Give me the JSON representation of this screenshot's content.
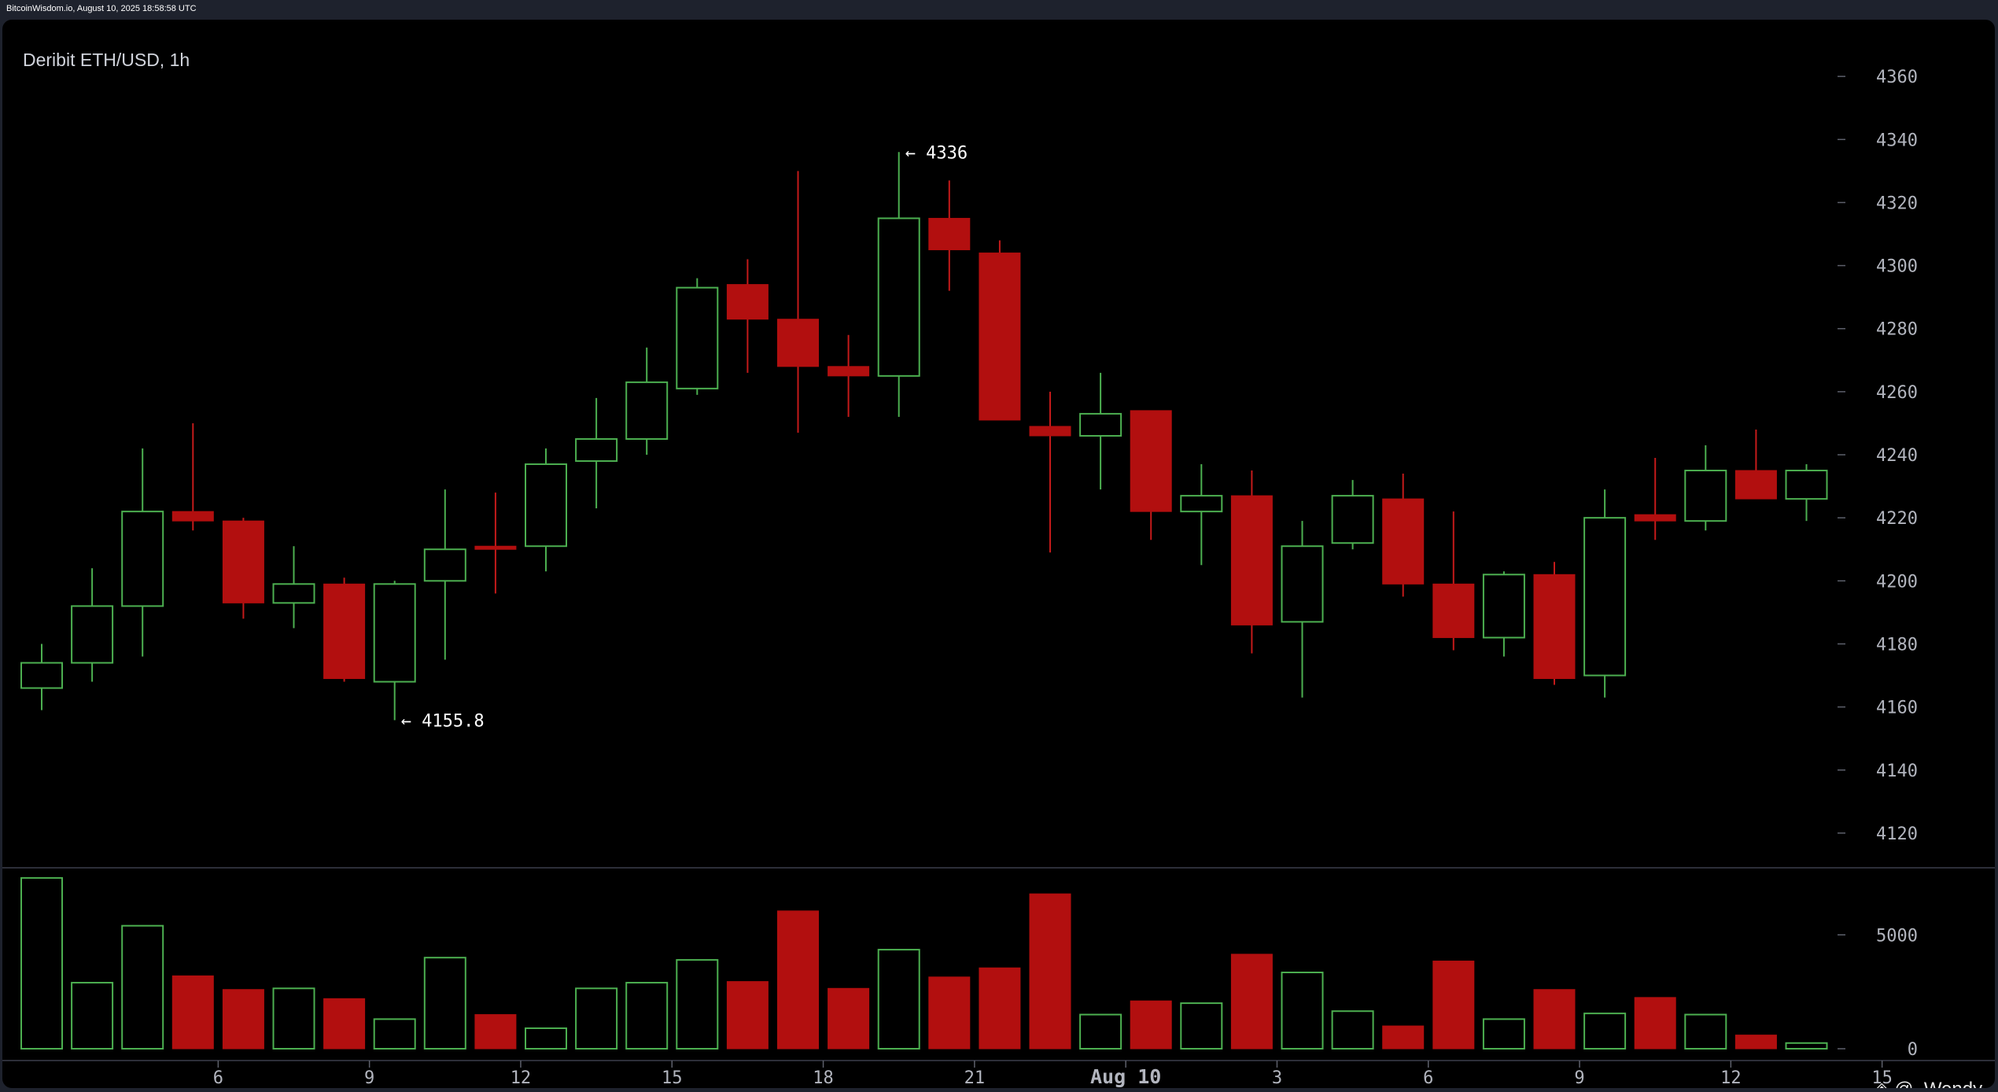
{
  "header": {
    "timestamp": "BitcoinWisdom.io, August 10, 2025 18:58:58 UTC"
  },
  "chart": {
    "title": "Deribit ETH/USD, 1h",
    "watermark": "◈ @_Wendy"
  },
  "colors": {
    "background": "#000000",
    "bull": "#4caf50",
    "bear": "#b20f0f",
    "axis_text": "#b2b5be",
    "annotation_text": "#ffffff"
  },
  "chart_data": [
    {
      "type": "candlestick",
      "title": "Deribit ETH/USD, 1h",
      "x_ticks": [
        "6",
        "9",
        "12",
        "15",
        "18",
        "21",
        "Aug 10",
        "3",
        "6",
        "9",
        "12",
        "15"
      ],
      "x_tick_candle_index": [
        3.5,
        6.5,
        9.5,
        12.5,
        15.5,
        18.5,
        21.5,
        24.5,
        27.5,
        30.5,
        33.5,
        36.5
      ],
      "y_ticks": [
        4120,
        4140,
        4160,
        4180,
        4200,
        4220,
        4240,
        4260,
        4280,
        4300,
        4320,
        4340,
        4360
      ],
      "ylim": [
        4106,
        4378
      ],
      "annotations": [
        {
          "label": "← 4336",
          "candle": 17,
          "price": 4336
        },
        {
          "label": "← 4155.8",
          "candle": 7,
          "price": 4155.8
        }
      ],
      "candles": [
        {
          "open": 4166,
          "high": 4180,
          "low": 4159,
          "close": 4174
        },
        {
          "open": 4174,
          "high": 4204,
          "low": 4168,
          "close": 4192
        },
        {
          "open": 4192,
          "high": 4242,
          "low": 4176,
          "close": 4222
        },
        {
          "open": 4222,
          "high": 4250,
          "low": 4216,
          "close": 4219
        },
        {
          "open": 4219,
          "high": 4220,
          "low": 4188,
          "close": 4193
        },
        {
          "open": 4193,
          "high": 4211,
          "low": 4185,
          "close": 4199
        },
        {
          "open": 4199,
          "high": 4201,
          "low": 4168,
          "close": 4169
        },
        {
          "open": 4168,
          "high": 4200,
          "low": 4155.8,
          "close": 4199
        },
        {
          "open": 4200,
          "high": 4229,
          "low": 4175,
          "close": 4210
        },
        {
          "open": 4211,
          "high": 4228,
          "low": 4196,
          "close": 4210
        },
        {
          "open": 4211,
          "high": 4242,
          "low": 4203,
          "close": 4237
        },
        {
          "open": 4238,
          "high": 4258,
          "low": 4223,
          "close": 4245
        },
        {
          "open": 4245,
          "high": 4274,
          "low": 4240,
          "close": 4263
        },
        {
          "open": 4261,
          "high": 4296,
          "low": 4259,
          "close": 4293
        },
        {
          "open": 4294,
          "high": 4302,
          "low": 4266,
          "close": 4283
        },
        {
          "open": 4283,
          "high": 4330,
          "low": 4247,
          "close": 4268
        },
        {
          "open": 4268,
          "high": 4278,
          "low": 4252,
          "close": 4265
        },
        {
          "open": 4265,
          "high": 4336,
          "low": 4252,
          "close": 4315
        },
        {
          "open": 4315,
          "high": 4327,
          "low": 4292,
          "close": 4305
        },
        {
          "open": 4304,
          "high": 4308,
          "low": 4251,
          "close": 4251
        },
        {
          "open": 4249,
          "high": 4260,
          "low": 4209,
          "close": 4246
        },
        {
          "open": 4246,
          "high": 4266,
          "low": 4229,
          "close": 4253
        },
        {
          "open": 4254,
          "high": 4254,
          "low": 4213,
          "close": 4222
        },
        {
          "open": 4222,
          "high": 4237,
          "low": 4205,
          "close": 4227
        },
        {
          "open": 4227,
          "high": 4235,
          "low": 4177,
          "close": 4186
        },
        {
          "open": 4187,
          "high": 4219,
          "low": 4163,
          "close": 4211
        },
        {
          "open": 4212,
          "high": 4232,
          "low": 4210,
          "close": 4227
        },
        {
          "open": 4226,
          "high": 4234,
          "low": 4195,
          "close": 4199
        },
        {
          "open": 4199,
          "high": 4222,
          "low": 4178,
          "close": 4182
        },
        {
          "open": 4182,
          "high": 4203,
          "low": 4176,
          "close": 4202
        },
        {
          "open": 4202,
          "high": 4206,
          "low": 4167,
          "close": 4169
        },
        {
          "open": 4170,
          "high": 4229,
          "low": 4163,
          "close": 4220
        },
        {
          "open": 4221,
          "high": 4239,
          "low": 4213,
          "close": 4219
        },
        {
          "open": 4219,
          "high": 4243,
          "low": 4216,
          "close": 4235
        },
        {
          "open": 4235,
          "high": 4248,
          "low": 4226,
          "close": 4226
        },
        {
          "open": 4226,
          "high": 4237,
          "low": 4219,
          "close": 4235
        }
      ]
    },
    {
      "type": "bar",
      "title": "",
      "y_ticks": [
        0,
        5000
      ],
      "ylim": [
        0,
        7600
      ],
      "values": [
        7500,
        2900,
        5400,
        3200,
        2600,
        2650,
        2200,
        1300,
        4000,
        1500,
        900,
        2650,
        2900,
        3900,
        2950,
        6050,
        2650,
        4350,
        3150,
        3550,
        6800,
        1500,
        2100,
        2000,
        4150,
        3350,
        1650,
        1000,
        3850,
        1300,
        2600,
        1550,
        2250,
        1500,
        600,
        250
      ]
    }
  ]
}
